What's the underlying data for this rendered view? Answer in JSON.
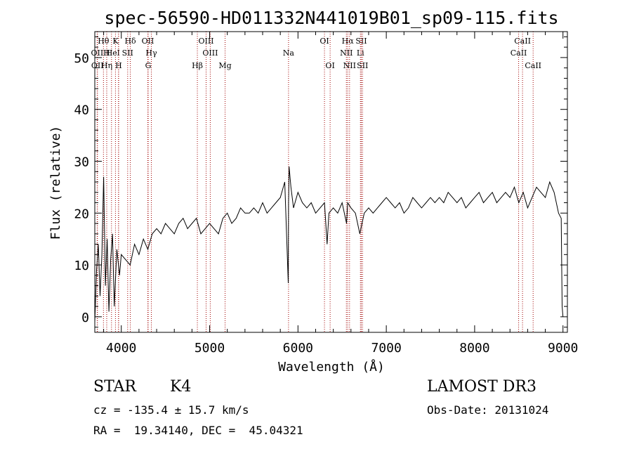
{
  "chart_data": {
    "type": "line",
    "title": "spec-56590-HD011332N441019B01_sp09-115.fits",
    "xlabel": "Wavelength (Å)",
    "ylabel": "Flux (relative)",
    "xlim": [
      3700,
      9050
    ],
    "ylim": [
      -3,
      55
    ],
    "xticks": [
      4000,
      5000,
      6000,
      7000,
      8000,
      9000
    ],
    "xtick_labels": [
      "4000",
      "5000",
      "6000",
      "7000",
      "8000",
      "9000"
    ],
    "yticks": [
      0,
      10,
      20,
      30,
      40,
      50
    ],
    "ytick_labels": [
      "0",
      "10",
      "20",
      "30",
      "40",
      "50"
    ],
    "series": [
      {
        "name": "flux",
        "x": [
          3700,
          3720,
          3740,
          3760,
          3780,
          3800,
          3820,
          3840,
          3860,
          3880,
          3900,
          3920,
          3950,
          3980,
          4000,
          4050,
          4100,
          4150,
          4200,
          4250,
          4300,
          4350,
          4400,
          4450,
          4500,
          4550,
          4600,
          4650,
          4700,
          4750,
          4800,
          4850,
          4900,
          4950,
          5000,
          5050,
          5100,
          5150,
          5200,
          5250,
          5300,
          5350,
          5400,
          5450,
          5500,
          5550,
          5600,
          5650,
          5700,
          5750,
          5800,
          5850,
          5890,
          5893,
          5896,
          5900,
          5920,
          5950,
          6000,
          6050,
          6100,
          6150,
          6200,
          6250,
          6300,
          6330,
          6350,
          6400,
          6450,
          6500,
          6550,
          6563,
          6600,
          6650,
          6700,
          6750,
          6800,
          6850,
          6900,
          6950,
          7000,
          7050,
          7100,
          7150,
          7200,
          7250,
          7300,
          7350,
          7400,
          7450,
          7500,
          7550,
          7600,
          7650,
          7700,
          7750,
          7800,
          7850,
          7900,
          7950,
          8000,
          8050,
          8100,
          8150,
          8200,
          8250,
          8300,
          8350,
          8400,
          8450,
          8500,
          8550,
          8600,
          8650,
          8700,
          8750,
          8800,
          8850,
          8900,
          8950,
          8980,
          8990,
          9000
        ],
        "y": [
          -1,
          9,
          14,
          4,
          12,
          27,
          6,
          15,
          1,
          11,
          16,
          2,
          13,
          8,
          12,
          11,
          10,
          14,
          12,
          15,
          13,
          16,
          17,
          16,
          18,
          17,
          16,
          18,
          19,
          17,
          18,
          19,
          16,
          17,
          18,
          17,
          16,
          19,
          20,
          18,
          19,
          21,
          20,
          20,
          21,
          20,
          22,
          20,
          21,
          22,
          23,
          26,
          6.5,
          22,
          24,
          29,
          25,
          21,
          24,
          22,
          21,
          22,
          20,
          21,
          22,
          14,
          20,
          21,
          20,
          22,
          18,
          22,
          21,
          20,
          16,
          20,
          21,
          20,
          21,
          22,
          23,
          22,
          21,
          22,
          20,
          21,
          23,
          22,
          21,
          22,
          23,
          22,
          23,
          22,
          24,
          23,
          22,
          23,
          21,
          22,
          23,
          24,
          22,
          23,
          24,
          22,
          23,
          24,
          23,
          25,
          22,
          24,
          21,
          23,
          25,
          24,
          23,
          26,
          24,
          20,
          19,
          2,
          0
        ]
      }
    ],
    "lines": [
      {
        "label": "Hθ",
        "x": 3798,
        "row": 1
      },
      {
        "label": "K",
        "x": 3934,
        "row": 1
      },
      {
        "label": "Hδ",
        "x": 4102,
        "row": 1
      },
      {
        "label": "OII",
        "x": 4300,
        "row": 1
      },
      {
        "label": "OIII",
        "x": 4960,
        "row": 1
      },
      {
        "label": "OI",
        "x": 6300,
        "row": 1
      },
      {
        "label": "Hα",
        "x": 6563,
        "row": 1
      },
      {
        "label": "SII",
        "x": 6717,
        "row": 1
      },
      {
        "label": "CaII",
        "x": 8542,
        "row": 1
      },
      {
        "label": "OII",
        "x": 3727,
        "row": 2
      },
      {
        "label": "H",
        "x": 3835,
        "row": 2
      },
      {
        "label": "He",
        "x": 3889,
        "row": 2
      },
      {
        "label": "I",
        "x": 3968,
        "row": 2
      },
      {
        "label": "SII",
        "x": 4072,
        "row": 2
      },
      {
        "label": "Hγ",
        "x": 4340,
        "row": 2
      },
      {
        "label": "OIII",
        "x": 5007,
        "row": 2
      },
      {
        "label": "Na",
        "x": 5893,
        "row": 2
      },
      {
        "label": "NII",
        "x": 6548,
        "row": 2
      },
      {
        "label": "Li",
        "x": 6707,
        "row": 2
      },
      {
        "label": "CaII",
        "x": 8498,
        "row": 2
      },
      {
        "label": "OII",
        "x": 3730,
        "row": 3
      },
      {
        "label": "Hη",
        "x": 3835,
        "row": 3
      },
      {
        "label": "H",
        "x": 3970,
        "row": 3
      },
      {
        "label": "G",
        "x": 4304,
        "row": 3
      },
      {
        "label": "Hβ",
        "x": 4861,
        "row": 3
      },
      {
        "label": "Mg",
        "x": 5175,
        "row": 3
      },
      {
        "label": "OI",
        "x": 6364,
        "row": 3
      },
      {
        "label": "NII",
        "x": 6584,
        "row": 3
      },
      {
        "label": "SII",
        "x": 6731,
        "row": 3
      },
      {
        "label": "CaII",
        "x": 8662,
        "row": 3
      }
    ]
  },
  "info": {
    "class": "STAR",
    "subclass": "K4",
    "survey": "LAMOST DR3",
    "cz": "cz = -135.4 ± 15.7 km/s",
    "obs_date": "Obs-Date: 20131024",
    "radec": "RA =  19.34140, DEC =  45.04321"
  },
  "colors": {
    "line_marker": "#a00000",
    "spectrum": "#000000"
  }
}
